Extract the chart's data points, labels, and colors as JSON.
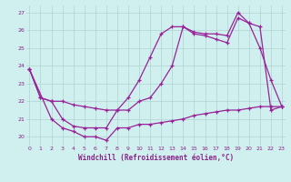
{
  "line1_x": [
    0,
    1,
    2,
    3,
    4,
    5,
    6,
    7,
    8,
    9,
    10,
    11,
    12,
    13,
    14,
    15,
    16,
    17,
    18,
    19,
    20,
    21,
    22,
    23
  ],
  "line1_y": [
    23.8,
    22.2,
    22.0,
    22.0,
    21.8,
    21.7,
    21.6,
    21.5,
    21.5,
    22.2,
    23.2,
    24.5,
    25.8,
    26.2,
    26.2,
    25.9,
    25.8,
    25.8,
    25.7,
    27.0,
    26.4,
    26.2,
    21.5,
    21.7
  ],
  "line2_x": [
    0,
    1,
    2,
    3,
    4,
    5,
    6,
    7,
    8,
    9,
    10,
    11,
    12,
    13,
    14,
    15,
    16,
    17,
    18,
    19,
    20,
    21,
    22,
    23
  ],
  "line2_y": [
    23.8,
    22.2,
    22.0,
    21.0,
    20.6,
    20.5,
    20.5,
    20.5,
    21.5,
    21.5,
    22.0,
    22.2,
    23.0,
    24.0,
    26.2,
    25.8,
    25.7,
    25.5,
    25.3,
    26.7,
    26.4,
    25.0,
    23.2,
    21.7
  ],
  "line3_x": [
    0,
    2,
    3,
    4,
    5,
    6,
    7,
    8,
    9,
    10,
    11,
    12,
    13,
    14,
    15,
    16,
    17,
    18,
    19,
    20,
    21,
    22,
    23
  ],
  "line3_y": [
    23.8,
    21.0,
    20.5,
    20.3,
    20.0,
    20.0,
    19.8,
    20.5,
    20.5,
    20.7,
    20.7,
    20.8,
    20.9,
    21.0,
    21.2,
    21.3,
    21.4,
    21.5,
    21.5,
    21.6,
    21.7,
    21.7,
    21.7
  ],
  "xlim": [
    -0.3,
    23.3
  ],
  "ylim": [
    19.5,
    27.4
  ],
  "yticks": [
    20,
    21,
    22,
    23,
    24,
    25,
    26,
    27
  ],
  "xticks": [
    0,
    1,
    2,
    3,
    4,
    5,
    6,
    7,
    8,
    9,
    10,
    11,
    12,
    13,
    14,
    15,
    16,
    17,
    18,
    19,
    20,
    21,
    22,
    23
  ],
  "xlabel": "Windchill (Refroidissement éolien,°C)",
  "background_color": "#cff0ee",
  "grid_color": "#b0d4d0",
  "line_color": "#992299",
  "tick_label_color": "#882288",
  "xlabel_color": "#882288"
}
